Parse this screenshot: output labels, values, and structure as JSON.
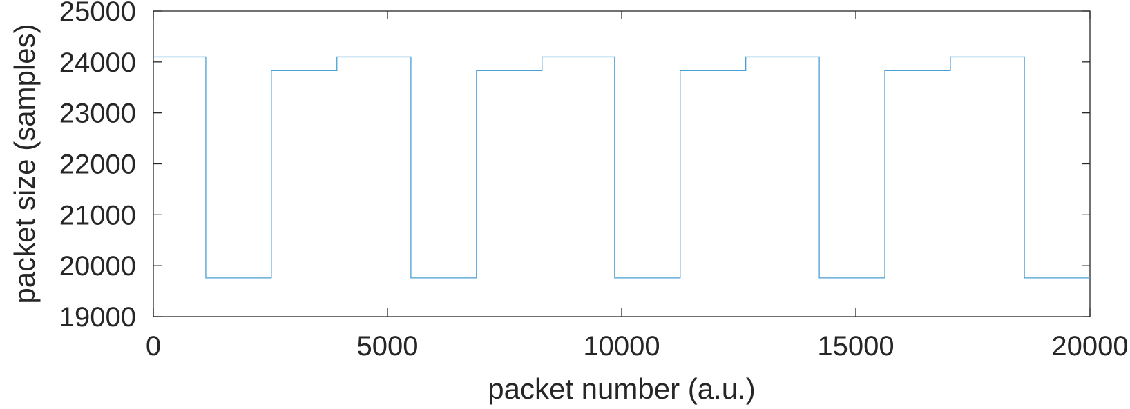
{
  "chart_data": {
    "type": "line",
    "title": "",
    "xlabel": "packet number (a.u.)",
    "ylabel": "packet size (samples)",
    "xlim": [
      0,
      20000
    ],
    "ylim": [
      19000,
      25000
    ],
    "xticks": [
      0,
      5000,
      10000,
      15000,
      20000
    ],
    "yticks": [
      19000,
      20000,
      21000,
      22000,
      23000,
      24000,
      25000
    ],
    "xtick_labels": [
      "0",
      "5000",
      "10000",
      "15000",
      "20000"
    ],
    "ytick_labels": [
      "19000",
      "20000",
      "21000",
      "22000",
      "23000",
      "24000",
      "25000"
    ],
    "grid": false,
    "legend": "none",
    "series": [
      {
        "color": "#4a9fd4",
        "step": "post",
        "x": [
          0,
          1120,
          2520,
          3920,
          5500,
          6900,
          8300,
          9850,
          11250,
          12650,
          14220,
          15620,
          17020,
          18600,
          20000
        ],
        "y": [
          24100,
          19760,
          23830,
          24100,
          19760,
          23830,
          24100,
          19760,
          23830,
          24100,
          19760,
          23830,
          24100,
          19760,
          19760
        ]
      }
    ]
  }
}
